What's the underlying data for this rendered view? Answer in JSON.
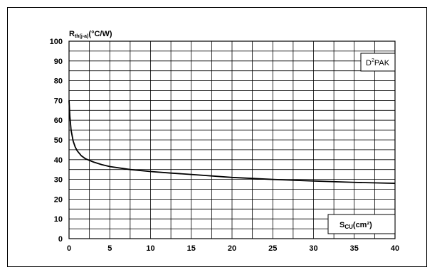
{
  "chart_data": {
    "type": "line",
    "title": "",
    "ylabel": {
      "main": "R",
      "sub": "th(j-a)",
      "unit": "(°C/W)"
    },
    "xlabel": {
      "main": "S",
      "sub": "CU",
      "unit": "(cm²)"
    },
    "xlim": [
      0,
      40
    ],
    "ylim": [
      0,
      100
    ],
    "x_ticks": [
      0,
      5,
      10,
      15,
      20,
      25,
      30,
      35,
      40
    ],
    "y_ticks": [
      0,
      10,
      20,
      30,
      40,
      50,
      60,
      70,
      80,
      90,
      100
    ],
    "x_tick_labels": [
      "0",
      "5",
      "10",
      "15",
      "20",
      "25",
      "30",
      "35",
      "40"
    ],
    "y_tick_labels": [
      "0",
      "10",
      "20",
      "30",
      "40",
      "50",
      "60",
      "70",
      "80",
      "90",
      "100"
    ],
    "grid": true,
    "package_label": {
      "main": "D",
      "sup": "2",
      "rest": "PAK"
    },
    "series": [
      {
        "x": [
          0,
          0.1,
          0.25,
          0.5,
          0.75,
          1,
          1.5,
          2,
          3,
          4,
          5,
          7.5,
          10,
          12.5,
          15,
          20,
          25,
          30,
          35,
          40
        ],
        "y": [
          70,
          62,
          55,
          49.5,
          46.5,
          44.5,
          42,
          40.5,
          38.8,
          37.5,
          36.5,
          35,
          34,
          33.2,
          32.5,
          31,
          30,
          29.2,
          28.5,
          28
        ]
      }
    ]
  }
}
